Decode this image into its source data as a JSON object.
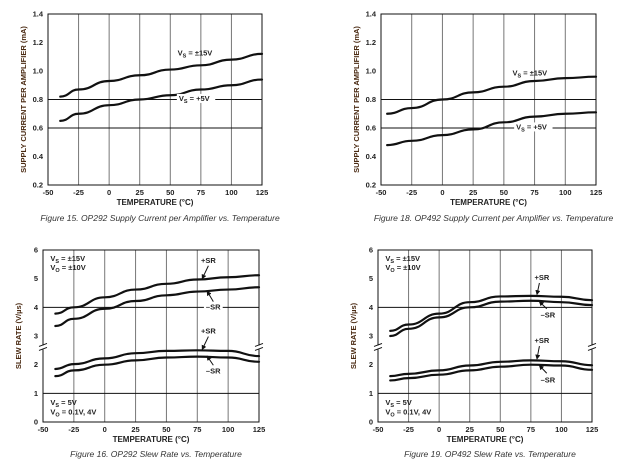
{
  "chart_data": [
    {
      "type": "line",
      "title": "Figure 15. OP292 Supply Current per Amplifier vs. Temperature",
      "xlabel": "TEMPERATURE (°C)",
      "ylabel": "SUPPLY CURRENT PER AMPLIFIER (mA)",
      "xlim": [
        -50,
        125
      ],
      "ylim": [
        0.2,
        1.4
      ],
      "xticks": [
        "-50",
        "-25",
        "0",
        "25",
        "50",
        "75",
        "100",
        "125"
      ],
      "yticks": [
        "0.2",
        "0.4",
        "0.6",
        "0.8",
        "1.0",
        "1.2",
        "1.4"
      ],
      "vgrid": [
        -25,
        0,
        25,
        50,
        75,
        100
      ],
      "hgrid": [
        0.6,
        0.8
      ],
      "x": [
        -40,
        -25,
        0,
        25,
        50,
        75,
        100,
        125
      ],
      "series": [
        {
          "name": "VS = ±15V",
          "values": [
            0.82,
            0.87,
            0.93,
            0.97,
            1.01,
            1.04,
            1.08,
            1.12
          ]
        },
        {
          "name": "VS = +5V",
          "values": [
            0.65,
            0.7,
            0.76,
            0.8,
            0.83,
            0.87,
            0.9,
            0.94
          ]
        }
      ],
      "annotations": [
        {
          "v": "V",
          "sub": "S",
          "text": " = ±15V",
          "x": 56,
          "y": 1.11
        },
        {
          "v": "V",
          "sub": "S",
          "text": " = +5V",
          "x": 57,
          "y": 0.79,
          "bg": true
        }
      ]
    },
    {
      "type": "line",
      "title": "Figure 18. OP492 Supply Current per Amplifier vs. Temperature",
      "xlabel": "TEMPERATURE (°C)",
      "ylabel": "SUPPLY CURRENT PER AMPLIFIER (mA)",
      "xlim": [
        -50,
        125
      ],
      "ylim": [
        0.2,
        1.4
      ],
      "xticks": [
        "-50",
        "-25",
        "0",
        "25",
        "50",
        "75",
        "100",
        "125"
      ],
      "yticks": [
        "0.2",
        "0.4",
        "0.6",
        "0.8",
        "1.0",
        "1.2",
        "1.4"
      ],
      "vgrid": [
        -25,
        0,
        25,
        50,
        75,
        100
      ],
      "hgrid": [
        0.6,
        0.8
      ],
      "x": [
        -45,
        -25,
        0,
        25,
        50,
        75,
        100,
        125
      ],
      "series": [
        {
          "name": "VS = ±15V",
          "values": [
            0.7,
            0.74,
            0.8,
            0.85,
            0.89,
            0.93,
            0.95,
            0.96
          ]
        },
        {
          "name": "VS = +5V",
          "values": [
            0.48,
            0.51,
            0.55,
            0.59,
            0.64,
            0.68,
            0.7,
            0.71
          ]
        }
      ],
      "annotations": [
        {
          "v": "V",
          "sub": "S",
          "text": " = ±15V",
          "x": 57,
          "y": 0.97
        },
        {
          "v": "V",
          "sub": "S",
          "text": " = +5V",
          "x": 60,
          "y": 0.59,
          "bg": true
        }
      ]
    },
    {
      "type": "line",
      "title": "Figure 16. OP292 Slew Rate vs. Temperature",
      "xlabel": "TEMPERATURE (°C)",
      "ylabel": "SLEW RATE (V/µs)",
      "xlim": [
        -50,
        125
      ],
      "ylim": [
        0,
        6
      ],
      "xticks": [
        "-50",
        "-25",
        "0",
        "25",
        "50",
        "75",
        "100",
        "125"
      ],
      "yticks": [
        "0",
        "1",
        "2",
        "3",
        "4",
        "5",
        "6"
      ],
      "vgrid": [
        -25,
        0,
        25,
        50,
        75,
        100
      ],
      "hgrid": [
        1,
        4
      ],
      "axis_break": 2.6,
      "x": [
        -40,
        -25,
        0,
        25,
        50,
        75,
        100,
        125
      ],
      "series": [
        {
          "name": "+SR (VS = ±15V)",
          "values": [
            3.78,
            4.0,
            4.35,
            4.62,
            4.82,
            4.97,
            5.05,
            5.12
          ]
        },
        {
          "name": "-SR (VS = ±15V)",
          "values": [
            3.35,
            3.6,
            3.95,
            4.22,
            4.42,
            4.55,
            4.62,
            4.7
          ]
        },
        {
          "name": "+SR (VS = 5V)",
          "values": [
            1.85,
            2.02,
            2.22,
            2.4,
            2.48,
            2.5,
            2.48,
            2.3
          ]
        },
        {
          "name": "-SR (VS = 5V)",
          "values": [
            1.6,
            1.8,
            2.0,
            2.15,
            2.25,
            2.28,
            2.25,
            2.1
          ]
        }
      ],
      "annotations": [
        {
          "v": "V",
          "sub": "S",
          "text": " = ±15V",
          "x": -44,
          "y": 5.62
        },
        {
          "v": "V",
          "sub": "O",
          "text": " = ±10V",
          "x": -44,
          "y": 5.3
        },
        {
          "text": "+SR",
          "x": 78,
          "y": 5.55,
          "arrow": [
            84,
            5.45,
            79,
            5.0
          ]
        },
        {
          "text": "–SR",
          "x": 82,
          "y": 3.92,
          "bg": true,
          "arrow": [
            88,
            4.2,
            83,
            4.56
          ]
        },
        {
          "text": "+SR",
          "x": 78,
          "y": 3.08,
          "arrow": [
            84,
            2.98,
            79,
            2.53
          ]
        },
        {
          "text": "–SR",
          "x": 82,
          "y": 1.7,
          "arrow": [
            88,
            1.98,
            83,
            2.3
          ]
        },
        {
          "v": "V",
          "sub": "S",
          "text": " = 5V",
          "x": -44,
          "y": 0.6
        },
        {
          "v": "V",
          "sub": "O",
          "text": " = 0.1V, 4V",
          "x": -44,
          "y": 0.26
        }
      ]
    },
    {
      "type": "line",
      "title": "Figure 19. OP492 Slew Rate vs. Temperature",
      "xlabel": "TEMPERATURE (°C)",
      "ylabel": "SLEW RATE (V/µs)",
      "xlim": [
        -50,
        125
      ],
      "ylim": [
        0,
        6
      ],
      "xticks": [
        "-50",
        "-25",
        "0",
        "25",
        "50",
        "75",
        "100",
        "125"
      ],
      "yticks": [
        "0",
        "1",
        "2",
        "3",
        "4",
        "5",
        "6"
      ],
      "vgrid": [
        -25,
        0,
        25,
        50,
        75,
        100
      ],
      "hgrid": [
        1,
        4
      ],
      "axis_break": 2.6,
      "x": [
        -40,
        -25,
        0,
        25,
        50,
        75,
        100,
        125
      ],
      "series": [
        {
          "name": "+SR (VS = ±15V)",
          "values": [
            3.18,
            3.4,
            3.78,
            4.18,
            4.38,
            4.4,
            4.37,
            4.25
          ]
        },
        {
          "name": "-SR (VS = ±15V)",
          "values": [
            3.0,
            3.25,
            3.65,
            4.0,
            4.2,
            4.23,
            4.18,
            4.08
          ]
        },
        {
          "name": "+SR (VS = 5V)",
          "values": [
            1.6,
            1.68,
            1.8,
            1.97,
            2.1,
            2.15,
            2.12,
            1.98
          ]
        },
        {
          "name": "-SR (VS = 5V)",
          "values": [
            1.45,
            1.53,
            1.65,
            1.8,
            1.93,
            2.0,
            1.97,
            1.82
          ]
        }
      ],
      "annotations": [
        {
          "v": "V",
          "sub": "S",
          "text": " = ±15V",
          "x": -44,
          "y": 5.62
        },
        {
          "v": "V",
          "sub": "O",
          "text": " = ±10V",
          "x": -44,
          "y": 5.3
        },
        {
          "text": "+SR",
          "x": 78,
          "y": 4.95,
          "arrow": [
            82,
            4.85,
            80,
            4.45
          ]
        },
        {
          "text": "–SR",
          "x": 83,
          "y": 3.65,
          "arrow": [
            88,
            3.95,
            82,
            4.2
          ]
        },
        {
          "text": "+SR",
          "x": 78,
          "y": 2.75,
          "arrow": [
            82,
            2.65,
            80,
            2.2
          ]
        },
        {
          "text": "–SR",
          "x": 83,
          "y": 1.38,
          "arrow": [
            88,
            1.7,
            82,
            1.97
          ]
        },
        {
          "v": "V",
          "sub": "S",
          "text": " = 5V",
          "x": -44,
          "y": 0.6
        },
        {
          "v": "V",
          "sub": "O",
          "text": " = 0.1V, 4V",
          "x": -44,
          "y": 0.26
        }
      ]
    }
  ]
}
